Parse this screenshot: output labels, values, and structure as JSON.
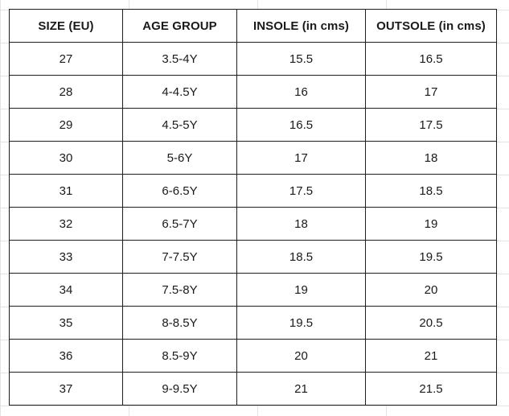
{
  "table": {
    "headers": [
      "SIZE (EU)",
      "AGE GROUP",
      "INSOLE (in cms)",
      "OUTSOLE (in cms)"
    ],
    "rows": [
      [
        "27",
        "3.5-4Y",
        "15.5",
        "16.5"
      ],
      [
        "28",
        "4-4.5Y",
        "16",
        "17"
      ],
      [
        "29",
        "4.5-5Y",
        "16.5",
        "17.5"
      ],
      [
        "30",
        "5-6Y",
        "17",
        "18"
      ],
      [
        "31",
        "6-6.5Y",
        "17.5",
        "18.5"
      ],
      [
        "32",
        "6.5-7Y",
        "18",
        "19"
      ],
      [
        "33",
        "7-7.5Y",
        "18.5",
        "19.5"
      ],
      [
        "34",
        "7.5-8Y",
        "19",
        "20"
      ],
      [
        "35",
        "8-8.5Y",
        "19.5",
        "20.5"
      ],
      [
        "36",
        "8.5-9Y",
        "20",
        "21"
      ],
      [
        "37",
        "9-9.5Y",
        "21",
        "21.5"
      ]
    ]
  }
}
